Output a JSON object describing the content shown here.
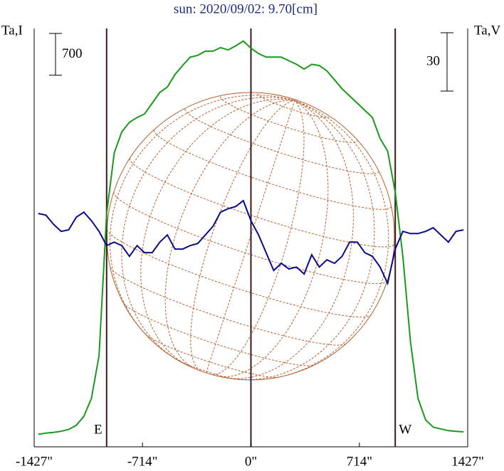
{
  "chart_data": {
    "type": "line",
    "title": "sun: 2020/09/02: 9.70[cm]",
    "y_label": "Ta,I",
    "y2_label": "Ta,V",
    "x": [
      -1400,
      -1350,
      -1300,
      -1250,
      -1200,
      -1150,
      -1100,
      -1050,
      -1000,
      -950,
      -900,
      -850,
      -800,
      -750,
      -700,
      -650,
      -600,
      -550,
      -500,
      -450,
      -400,
      -350,
      -300,
      -250,
      -200,
      -150,
      -100,
      -50,
      0,
      50,
      100,
      150,
      200,
      250,
      300,
      350,
      400,
      450,
      500,
      550,
      600,
      650,
      700,
      750,
      800,
      850,
      900,
      950,
      1000,
      1050,
      1100,
      1150,
      1200,
      1250,
      1300,
      1350,
      1400
    ],
    "series": [
      {
        "name": "I",
        "color": "#1a9a1a",
        "values": [
          210,
          230,
          240,
          260,
          290,
          360,
          510,
          810,
          1520,
          3900,
          4920,
          5270,
          5430,
          5510,
          5570,
          5750,
          5930,
          6020,
          6230,
          6380,
          6520,
          6550,
          6620,
          6620,
          6680,
          6640,
          6710,
          6790,
          6670,
          6580,
          6520,
          6520,
          6520,
          6460,
          6400,
          6320,
          6400,
          6380,
          6290,
          6140,
          5990,
          5870,
          5750,
          5630,
          5510,
          5160,
          4950,
          4260,
          3190,
          1760,
          810,
          450,
          330,
          300,
          270,
          260,
          250
        ]
      },
      {
        "name": "V",
        "color": "#0a0a8a",
        "axis": "y2",
        "values": [
          9.9,
          9.1,
          4.4,
          0.7,
          1.5,
          8.0,
          10.6,
          6.2,
          0.7,
          -6.6,
          -4.8,
          -6.6,
          -12.1,
          -6.6,
          -10.2,
          -10.2,
          -4.8,
          -1.1,
          -8.4,
          -8.4,
          -6.6,
          -5.5,
          -1.1,
          3.3,
          10.6,
          12.4,
          13.5,
          16.5,
          6.2,
          -1.1,
          -10.2,
          -19.4,
          -15.7,
          -18.6,
          -17.6,
          -21.2,
          -11.3,
          -17.6,
          -13.9,
          -15.7,
          -12.1,
          -4.8,
          -4.8,
          -10.2,
          -12.1,
          -17.6,
          -26.0,
          -8.4,
          0.7,
          -0.4,
          -0.4,
          0.7,
          2.6,
          -1.1,
          -4.8,
          0.7,
          1.5
        ]
      }
    ],
    "xlim": [
      -1427,
      1427
    ],
    "xticks": [
      {
        "value": -1427,
        "label": "-1427\""
      },
      {
        "value": -714,
        "label": "-714\""
      },
      {
        "value": 0,
        "label": "0\""
      },
      {
        "value": 714,
        "label": "714\""
      },
      {
        "value": 1427,
        "label": "1427\""
      }
    ],
    "ylim": [
      0,
      7000
    ],
    "y2lim": [
      -110,
      105
    ],
    "scale_bars": [
      {
        "value": 700
      },
      {
        "value": 30,
        "axis": "y2"
      }
    ],
    "vlines": [
      {
        "value": -950,
        "label": "E"
      },
      {
        "value": 0
      },
      {
        "value": 950,
        "label": "W"
      }
    ]
  }
}
